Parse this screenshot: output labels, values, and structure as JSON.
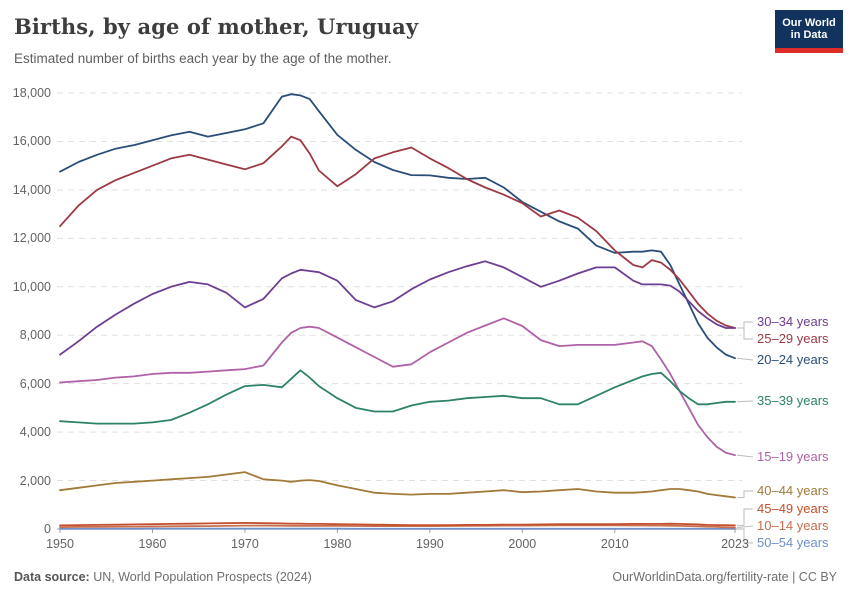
{
  "header": {
    "title": "Births, by age of mother, Uruguay",
    "subtitle": "Estimated number of births each year by the age of the mother."
  },
  "logo": {
    "line1": "Our World",
    "line2": "in Data"
  },
  "footer": {
    "datasource_label": "Data source:",
    "datasource_text": " UN, World Population Prospects (2024)",
    "credit_link": "OurWorldinData.org/fertility-rate",
    "credit_separator": " | ",
    "credit_license": "CC BY"
  },
  "colors": {
    "grid": "#e0e0e0",
    "axis": "#a0a0a0",
    "tick_text": "#636363",
    "connector": "#bdbdbd",
    "logo_bg": "#12335e",
    "logo_bar": "#dc2d26"
  },
  "chart_data": {
    "type": "line",
    "title": "Births, by age of mother, Uruguay",
    "subtitle": "Estimated number of births each year by the age of the mother.",
    "xlabel": "",
    "ylabel": "",
    "x_range": [
      1950,
      2023
    ],
    "ylim": [
      0,
      18000
    ],
    "grid": "dashed-horizontal",
    "legend_position": "right",
    "x_ticks": [
      1950,
      1960,
      1970,
      1980,
      1990,
      2000,
      2010,
      2023
    ],
    "x_tick_labels": [
      "1950",
      "1960",
      "1970",
      "1980",
      "1990",
      "2000",
      "2010",
      "2023"
    ],
    "y_ticks": [
      0,
      2000,
      4000,
      6000,
      8000,
      10000,
      12000,
      14000,
      16000,
      18000
    ],
    "y_tick_labels": [
      "0",
      "2,000",
      "4,000",
      "6,000",
      "8,000",
      "10,000",
      "12,000",
      "14,000",
      "16,000",
      "18,000"
    ],
    "years": [
      1950,
      1952,
      1954,
      1956,
      1958,
      1960,
      1962,
      1964,
      1966,
      1968,
      1970,
      1972,
      1974,
      1975,
      1976,
      1977,
      1978,
      1980,
      1982,
      1984,
      1986,
      1988,
      1990,
      1992,
      1994,
      1996,
      1998,
      2000,
      2002,
      2004,
      2006,
      2008,
      2010,
      2012,
      2013,
      2014,
      2015,
      2016,
      2017,
      2018,
      2019,
      2020,
      2021,
      2022,
      2023
    ],
    "series": [
      {
        "name": "30–34 years",
        "color": "#6d3e91",
        "label_y": 322,
        "values": [
          7200,
          7750,
          8350,
          8850,
          9300,
          9700,
          10000,
          10200,
          10100,
          9750,
          9150,
          9500,
          10350,
          10550,
          10700,
          10650,
          10600,
          10250,
          9450,
          9150,
          9400,
          9900,
          10300,
          10600,
          10850,
          11050,
          10800,
          10400,
          10000,
          10250,
          10550,
          10800,
          10800,
          10250,
          10100,
          10100,
          10100,
          10050,
          9800,
          9400,
          9000,
          8700,
          8450,
          8300,
          8300
        ]
      },
      {
        "name": "25–29 years",
        "color": "#9c3a44",
        "label_y": 339,
        "values": [
          12500,
          13350,
          14000,
          14400,
          14700,
          15000,
          15300,
          15450,
          15250,
          15050,
          14850,
          15100,
          15800,
          16200,
          16050,
          15500,
          14800,
          14150,
          14650,
          15300,
          15550,
          15750,
          15300,
          14900,
          14450,
          14100,
          13800,
          13450,
          12900,
          13150,
          12850,
          12300,
          11500,
          10900,
          10800,
          11100,
          11000,
          10700,
          10300,
          9800,
          9300,
          8900,
          8600,
          8400,
          8300
        ]
      },
      {
        "name": "20–24 years",
        "color": "#2a4e78",
        "label_y": 360,
        "values": [
          14750,
          15150,
          15450,
          15700,
          15850,
          16050,
          16250,
          16400,
          16200,
          16350,
          16500,
          16750,
          17850,
          17950,
          17900,
          17750,
          17250,
          16270,
          15650,
          15150,
          14820,
          14610,
          14600,
          14500,
          14450,
          14500,
          14100,
          13500,
          13100,
          12700,
          12400,
          11700,
          11400,
          11450,
          11450,
          11500,
          11450,
          10900,
          10100,
          9300,
          8500,
          7900,
          7500,
          7200,
          7050
        ]
      },
      {
        "name": "35–39 years",
        "color": "#2c8465",
        "label_y": 401,
        "values": [
          4450,
          4400,
          4350,
          4350,
          4350,
          4400,
          4500,
          4800,
          5150,
          5550,
          5900,
          5950,
          5850,
          6200,
          6550,
          6250,
          5900,
          5400,
          5000,
          4850,
          4850,
          5100,
          5250,
          5300,
          5400,
          5450,
          5500,
          5400,
          5400,
          5150,
          5150,
          5500,
          5850,
          6150,
          6300,
          6400,
          6450,
          6100,
          5700,
          5400,
          5150,
          5150,
          5200,
          5250,
          5250
        ]
      },
      {
        "name": "15–19 years",
        "color": "#af62a8",
        "label_y": 457,
        "values": [
          6050,
          6100,
          6150,
          6250,
          6300,
          6400,
          6450,
          6450,
          6500,
          6550,
          6600,
          6750,
          7700,
          8100,
          8300,
          8350,
          8300,
          7900,
          7500,
          7100,
          6700,
          6800,
          7300,
          7700,
          8100,
          8400,
          8700,
          8380,
          7800,
          7550,
          7600,
          7600,
          7600,
          7700,
          7750,
          7550,
          7000,
          6400,
          5700,
          5000,
          4300,
          3800,
          3400,
          3150,
          3050
        ]
      },
      {
        "name": "40–44 years",
        "color": "#a17a39",
        "label_y": 491,
        "values": [
          1600,
          1700,
          1800,
          1900,
          1950,
          2000,
          2050,
          2100,
          2150,
          2250,
          2350,
          2050,
          2000,
          1950,
          2000,
          2020,
          1980,
          1800,
          1650,
          1500,
          1450,
          1420,
          1450,
          1450,
          1500,
          1550,
          1600,
          1520,
          1550,
          1600,
          1650,
          1550,
          1500,
          1500,
          1520,
          1550,
          1600,
          1650,
          1650,
          1600,
          1550,
          1450,
          1400,
          1350,
          1300
        ]
      },
      {
        "name": "45–49 years",
        "color": "#c4502e",
        "label_y": 509,
        "values": [
          150,
          160,
          170,
          180,
          190,
          200,
          210,
          220,
          230,
          240,
          250,
          240,
          230,
          220,
          220,
          210,
          210,
          200,
          190,
          180,
          170,
          160,
          160,
          160,
          170,
          170,
          180,
          180,
          190,
          200,
          200,
          200,
          200,
          210,
          210,
          210,
          210,
          220,
          210,
          200,
          190,
          170,
          160,
          155,
          150
        ]
      },
      {
        "name": "10–14 years",
        "color": "#c76f4f",
        "label_y": 526,
        "values": [
          80,
          85,
          90,
          95,
          100,
          105,
          110,
          115,
          120,
          130,
          140,
          140,
          135,
          130,
          130,
          130,
          130,
          130,
          125,
          120,
          120,
          120,
          120,
          125,
          130,
          135,
          140,
          140,
          145,
          150,
          150,
          150,
          150,
          145,
          145,
          140,
          140,
          135,
          130,
          120,
          110,
          95,
          85,
          70,
          60
        ]
      },
      {
        "name": "50–54 years",
        "color": "#6f8fc9",
        "label_y": 543,
        "values": [
          10,
          10,
          10,
          10,
          10,
          12,
          12,
          12,
          12,
          12,
          12,
          12,
          12,
          12,
          12,
          12,
          12,
          12,
          10,
          10,
          10,
          10,
          10,
          10,
          10,
          10,
          10,
          10,
          10,
          10,
          10,
          10,
          10,
          10,
          10,
          10,
          10,
          10,
          8,
          8,
          8,
          6,
          6,
          5,
          5
        ]
      }
    ]
  }
}
